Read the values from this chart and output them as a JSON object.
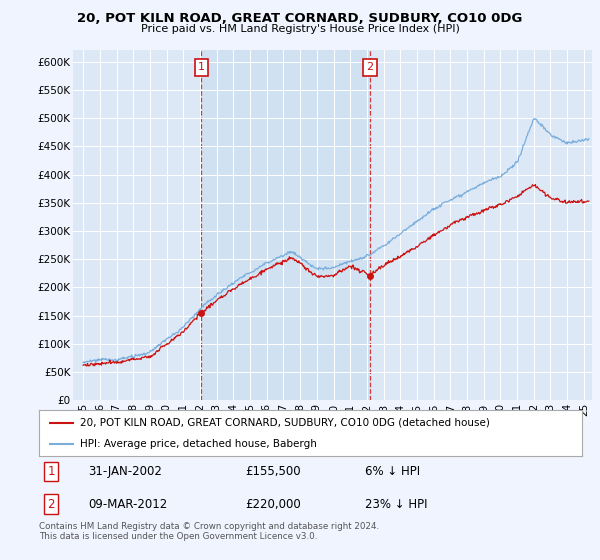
{
  "title": "20, POT KILN ROAD, GREAT CORNARD, SUDBURY, CO10 0DG",
  "subtitle": "Price paid vs. HM Land Registry's House Price Index (HPI)",
  "ylim": [
    0,
    620000
  ],
  "yticks": [
    0,
    50000,
    100000,
    150000,
    200000,
    250000,
    300000,
    350000,
    400000,
    450000,
    500000,
    550000,
    600000
  ],
  "ytick_labels": [
    "£0",
    "£50K",
    "£100K",
    "£150K",
    "£200K",
    "£250K",
    "£300K",
    "£350K",
    "£400K",
    "£450K",
    "£500K",
    "£550K",
    "£600K"
  ],
  "hpi_color": "#7aaddc",
  "house_color": "#cc1111",
  "sale1_date": 2002.08,
  "sale1_price": 155500,
  "sale2_date": 2012.19,
  "sale2_price": 220000,
  "legend_house": "20, POT KILN ROAD, GREAT CORNARD, SUDBURY, CO10 0DG (detached house)",
  "legend_hpi": "HPI: Average price, detached house, Babergh",
  "annotation1_date": "31-JAN-2002",
  "annotation1_price": "£155,500",
  "annotation1_pct": "6% ↓ HPI",
  "annotation2_date": "09-MAR-2012",
  "annotation2_price": "£220,000",
  "annotation2_pct": "23% ↓ HPI",
  "footer": "Contains HM Land Registry data © Crown copyright and database right 2024.\nThis data is licensed under the Open Government Licence v3.0.",
  "background_color": "#f0f4ff",
  "plot_bg_color": "#dce8f5",
  "shade_color": "#c8ddf0"
}
